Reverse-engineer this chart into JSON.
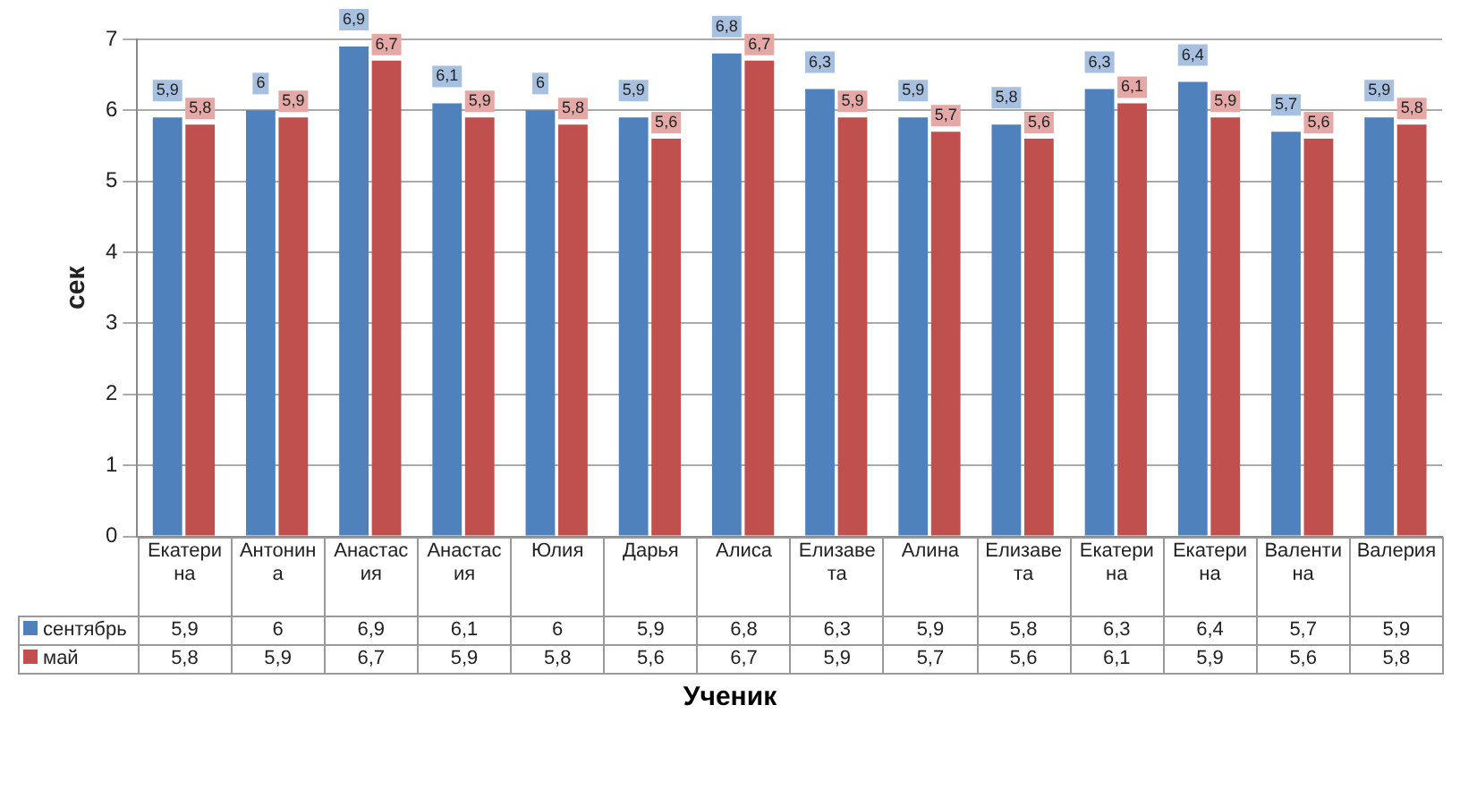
{
  "chart_data": {
    "type": "bar",
    "ylabel": "сек",
    "xlabel": "Ученик",
    "categories": [
      "Екатерина",
      "Антонина",
      "Анастасия",
      "Анастасия",
      "Юлия",
      "Дарья",
      "Алиса",
      "Елизавета",
      "Алина",
      "Елизавета",
      "Екатерина",
      "Екатерина",
      "Валентина",
      "Валерия"
    ],
    "series": [
      {
        "name": "сентябрь",
        "color": "#4f81bd",
        "values": [
          5.9,
          6,
          6.9,
          6.1,
          6,
          5.9,
          6.8,
          6.3,
          5.9,
          5.8,
          6.3,
          6.4,
          5.7,
          5.9
        ],
        "value_labels": [
          "5,9",
          "6",
          "6,9",
          "6,1",
          "6",
          "5,9",
          "6,8",
          "6,3",
          "5,9",
          "5,8",
          "6,3",
          "6,4",
          "5,7",
          "5,9"
        ]
      },
      {
        "name": "май",
        "color": "#c0504d",
        "values": [
          5.8,
          5.9,
          6.7,
          5.9,
          5.8,
          5.6,
          6.7,
          5.9,
          5.7,
          5.6,
          6.1,
          5.9,
          5.6,
          5.8
        ],
        "value_labels": [
          "5,8",
          "5,9",
          "6,7",
          "5,9",
          "5,8",
          "5,6",
          "6,7",
          "5,9",
          "5,7",
          "5,6",
          "6,1",
          "5,9",
          "5,6",
          "5,8"
        ]
      }
    ],
    "ylim": [
      0,
      7
    ],
    "yticks": [
      0,
      1,
      2,
      3,
      4,
      5,
      6,
      7
    ],
    "grid": "y",
    "legend": "bottom"
  }
}
